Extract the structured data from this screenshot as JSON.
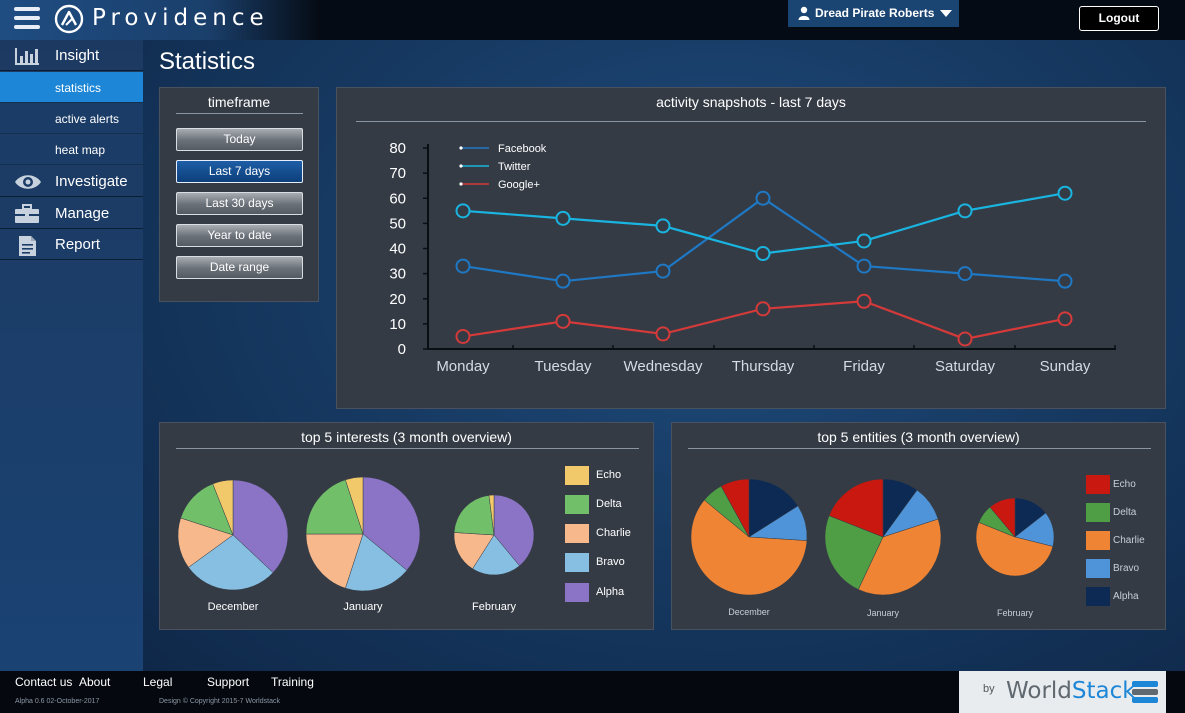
{
  "header": {
    "brand": "Providence",
    "user_name": "Dread Pirate Roberts",
    "logout_label": "Logout"
  },
  "sidebar": {
    "items": [
      {
        "label": "Insight",
        "icon": "bar-chart-icon"
      },
      {
        "label": "statistics",
        "active": true
      },
      {
        "label": "active alerts"
      },
      {
        "label": "heat map"
      },
      {
        "label": "Investigate",
        "icon": "eye-icon"
      },
      {
        "label": "Manage",
        "icon": "briefcase-icon"
      },
      {
        "label": "Report",
        "icon": "document-icon"
      }
    ]
  },
  "page": {
    "title": "Statistics"
  },
  "timeframe": {
    "title": "timeframe",
    "buttons": [
      "Today",
      "Last 7 days",
      "Last 30 days",
      "Year to date",
      "Date range"
    ],
    "selected": "Last 7 days"
  },
  "colors": {
    "facebook": "#1f78c4",
    "twitter": "#1ab4e0",
    "googleplus": "#d43a3a",
    "echo": "#f2c96a",
    "delta": "#72bf6a",
    "charlie": "#f7b98c",
    "bravo": "#86bfe2",
    "alpha": "#8b73c6",
    "echo2": "#c9180f",
    "delta2": "#4f9d45",
    "charlie2": "#ee8434",
    "bravo2": "#4f94d8",
    "alpha2": "#0c2a53"
  },
  "chart_data": [
    {
      "type": "line",
      "title": "activity snapshots - last 7 days",
      "categories": [
        "Monday",
        "Tuesday",
        "Wednesday",
        "Thursday",
        "Friday",
        "Saturday",
        "Sunday"
      ],
      "ylim": [
        0,
        80
      ],
      "yticks": [
        0,
        10,
        20,
        30,
        40,
        50,
        60,
        70,
        80
      ],
      "legend": "top-left",
      "series": [
        {
          "name": "Facebook",
          "values": [
            33,
            27,
            31,
            60,
            33,
            30,
            27
          ]
        },
        {
          "name": "Twitter",
          "values": [
            55,
            52,
            49,
            38,
            43,
            55,
            62
          ]
        },
        {
          "name": "Google+",
          "values": [
            5,
            11,
            6,
            16,
            19,
            4,
            12
          ]
        }
      ]
    },
    {
      "type": "pie",
      "title": "top 5 interests (3 month overview)",
      "legend_labels": [
        "Echo",
        "Delta",
        "Charlie",
        "Bravo",
        "Alpha"
      ],
      "pies": [
        {
          "name": "December",
          "values": {
            "Alpha": 37,
            "Bravo": 28,
            "Charlie": 15,
            "Delta": 14,
            "Echo": 6
          }
        },
        {
          "name": "January",
          "values": {
            "Alpha": 36,
            "Bravo": 19,
            "Charlie": 20,
            "Delta": 20,
            "Echo": 5
          }
        },
        {
          "name": "February",
          "values": {
            "Alpha": 39,
            "Bravo": 20,
            "Charlie": 17,
            "Delta": 22,
            "Echo": 2
          }
        }
      ]
    },
    {
      "type": "pie",
      "title": "top 5 entities (3 month overview)",
      "legend_labels": [
        "Echo",
        "Delta",
        "Charlie",
        "Bravo",
        "Alpha"
      ],
      "pies": [
        {
          "name": "December",
          "values": {
            "Echo": 8,
            "Delta": 6,
            "Charlie": 60,
            "Bravo": 10,
            "Alpha": 16
          }
        },
        {
          "name": "January",
          "values": {
            "Echo": 19,
            "Delta": 24,
            "Charlie": 37,
            "Bravo": 10,
            "Alpha": 10
          }
        },
        {
          "name": "February",
          "values": {
            "Echo": 10,
            "Delta": 7,
            "Charlie": 47,
            "Bravo": 13,
            "Alpha": 13
          }
        }
      ]
    }
  ],
  "footer": {
    "links": [
      "Contact us",
      "About",
      "Legal",
      "Support",
      "Training"
    ],
    "version": "Alpha 0.6 02-October-2017",
    "copyright": "Design © Copyright 2015-7 Worldstack",
    "by": "by",
    "company_part1": "World",
    "company_part2": "Stack"
  }
}
